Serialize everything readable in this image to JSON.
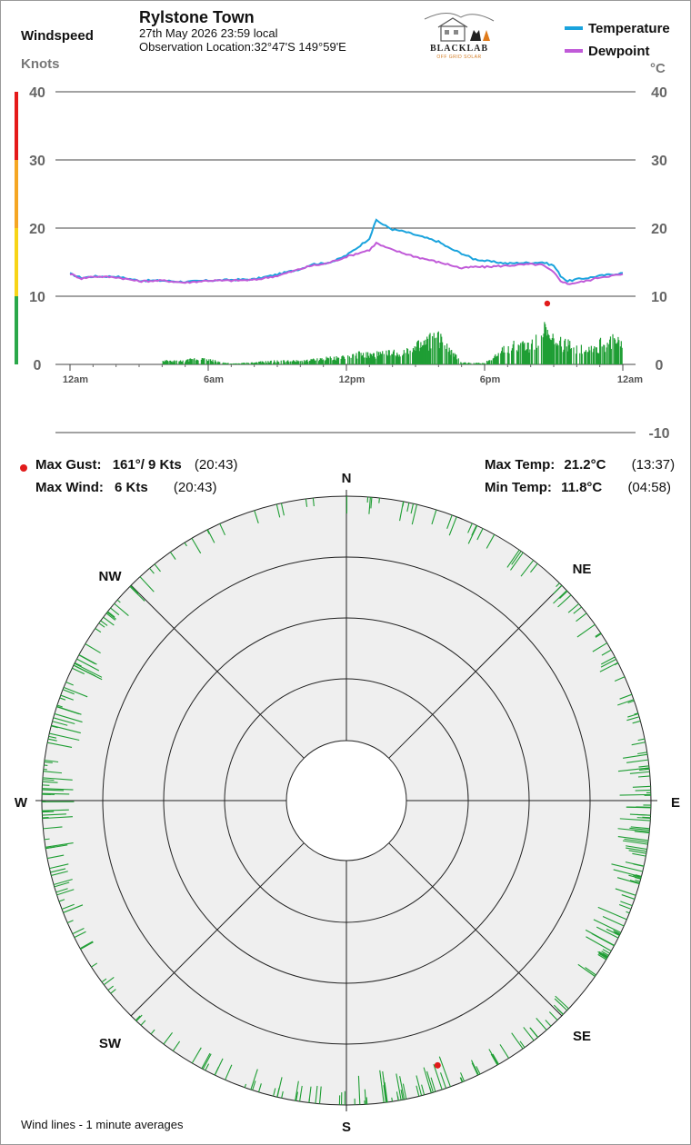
{
  "header": {
    "station": "Rylstone Town",
    "datetime": "27th May 2026  23:59 local",
    "location_label": "Observation Location:",
    "location_value": "32°47'S 149°59'E"
  },
  "logo": {
    "text": "BLACKLAB",
    "subtext": "OFF GRID SOLAR"
  },
  "left_axis": {
    "title": "Windspeed",
    "unit": "Knots"
  },
  "right_axis": {
    "unit": "°C"
  },
  "legend": [
    {
      "name": "Temperature",
      "color": "#1aa3dd"
    },
    {
      "name": "Dewpoint",
      "color": "#c05ad8"
    }
  ],
  "stats": {
    "max_gust_label": "Max Gust:",
    "max_gust_value": "161°/  9 Kts",
    "max_gust_time": "(20:43)",
    "max_wind_label": "Max Wind:",
    "max_wind_value": "6 Kts",
    "max_wind_time": "(20:43)",
    "max_temp_label": "Max Temp:",
    "max_temp_value": "21.2°C",
    "max_temp_time": "(13:37)",
    "min_temp_label": "Min Temp:",
    "min_temp_value": "11.8°C",
    "min_temp_time": "(04:58)"
  },
  "compass": {
    "N": "N",
    "NE": "NE",
    "E": "E",
    "SE": "SE",
    "S": "S",
    "SW": "SW",
    "W": "W",
    "NW": "NW"
  },
  "footnote": "Wind lines - 1 minute averages",
  "colors": {
    "temperature": "#1aa3dd",
    "dewpoint": "#c05ad8",
    "wind": "#1f9e34",
    "gust": "#e11b1b",
    "band_red": "#e51a1a",
    "band_orange": "#f5a623",
    "band_yellow": "#f7d417",
    "band_green": "#2aa84a",
    "rose_bg": "#efefef"
  },
  "chart_data": [
    {
      "type": "line",
      "x_ticks": [
        "12am",
        "6am",
        "12pm",
        "6pm",
        "12am"
      ],
      "y_left_ticks": [
        "0",
        "10",
        "20",
        "30",
        "40"
      ],
      "y_right_ticks": [
        "-10",
        "0",
        "10",
        "20",
        "30",
        "40"
      ],
      "x_range_hours": [
        0,
        24
      ],
      "temp_range": [
        -10,
        40
      ],
      "wind_range_knots": [
        0,
        40
      ],
      "series": [
        {
          "name": "Temperature",
          "x_hours": [
            0,
            0.5,
            1,
            2,
            3,
            4,
            5,
            6,
            7,
            8,
            9,
            10,
            10.5,
            11,
            11.5,
            12,
            12.5,
            13,
            13.3,
            13.6,
            14,
            14.5,
            15,
            15.5,
            16,
            16.5,
            17,
            17.5,
            18,
            18.5,
            19,
            19.5,
            20,
            20.5,
            21,
            21.3,
            21.6,
            22,
            22.5,
            23,
            23.5,
            24
          ],
          "values": [
            13.3,
            12.7,
            12.9,
            12.9,
            12.3,
            12.3,
            12.1,
            12.3,
            12.4,
            12.5,
            13.2,
            14.0,
            14.7,
            14.8,
            15.2,
            16.0,
            17.2,
            18.5,
            21.2,
            20.5,
            19.8,
            19.5,
            19.0,
            18.5,
            18.0,
            17.0,
            16.3,
            15.5,
            15.2,
            15.0,
            14.8,
            14.9,
            14.9,
            15.0,
            14.5,
            13.0,
            12.2,
            12.5,
            12.7,
            13.0,
            13.2,
            13.4
          ]
        },
        {
          "name": "Dewpoint",
          "x_hours": [
            0,
            0.5,
            1,
            2,
            3,
            4,
            5,
            6,
            7,
            8,
            9,
            10,
            10.5,
            11,
            11.5,
            12,
            12.5,
            13,
            13.3,
            13.6,
            14,
            14.5,
            15,
            15.5,
            16,
            16.5,
            17,
            17.5,
            18,
            18.5,
            19,
            19.5,
            20,
            20.5,
            21,
            21.3,
            21.6,
            22,
            22.5,
            23,
            23.5,
            24
          ],
          "values": [
            13.3,
            12.6,
            12.9,
            12.8,
            12.2,
            12.3,
            12.0,
            12.3,
            12.3,
            12.4,
            13.0,
            14.0,
            14.5,
            14.7,
            15.2,
            15.8,
            16.3,
            16.8,
            17.8,
            17.3,
            16.8,
            16.3,
            15.8,
            15.4,
            15.0,
            14.6,
            14.1,
            14.3,
            14.3,
            14.4,
            14.5,
            14.6,
            14.7,
            14.6,
            13.5,
            12.3,
            11.8,
            12.0,
            12.3,
            12.8,
            13.0,
            13.2
          ]
        }
      ],
      "wind_series": {
        "name": "Windspeed",
        "x_hours": [
          4.5,
          5.0,
          5.5,
          7.0,
          8.0,
          9.0,
          10.0,
          11.5,
          12.5,
          13.0,
          13.5,
          14.0,
          14.5,
          15.0,
          15.5,
          16.0,
          16.5,
          17.0,
          17.5,
          18.0,
          18.5,
          19.0,
          19.5,
          20.0,
          20.5,
          21.0,
          21.5,
          22.0,
          22.5,
          23.0,
          23.5,
          24.0
        ],
        "values": [
          0.5,
          0.5,
          1.0,
          0.1,
          0.3,
          0.5,
          0.5,
          1.0,
          1.5,
          1.5,
          1.5,
          1.8,
          2.0,
          2.5,
          3.5,
          4.0,
          2.0,
          0.3,
          0.2,
          0.2,
          1.5,
          2.5,
          3.0,
          3.0,
          5.5,
          3.5,
          3.0,
          2.5,
          2.5,
          3.0,
          3.5,
          3.5
        ]
      },
      "max_gust_marker": {
        "x_hours": 20.72,
        "knots": 9
      }
    },
    {
      "type": "scatter",
      "description_axis": "wind direction degrees vs 1-minute average speed",
      "ring_max_knots": 10,
      "direction_bins_deg": [
        0,
        10,
        20,
        30,
        40,
        50,
        60,
        70,
        80,
        90,
        100,
        110,
        120,
        130,
        140,
        150,
        160,
        170,
        180,
        190,
        200,
        210,
        220,
        230,
        240,
        250,
        260,
        270,
        280,
        290,
        300,
        310,
        320,
        330,
        340,
        350
      ],
      "direction_counts": [
        5,
        6,
        7,
        5,
        6,
        6,
        7,
        8,
        14,
        18,
        16,
        14,
        10,
        7,
        6,
        9,
        14,
        13,
        10,
        8,
        6,
        4,
        3,
        5,
        7,
        9,
        13,
        14,
        13,
        12,
        9,
        6,
        4,
        3,
        3,
        2
      ],
      "max_gust_point": {
        "direction_deg": 161,
        "knots": 9
      }
    }
  ]
}
